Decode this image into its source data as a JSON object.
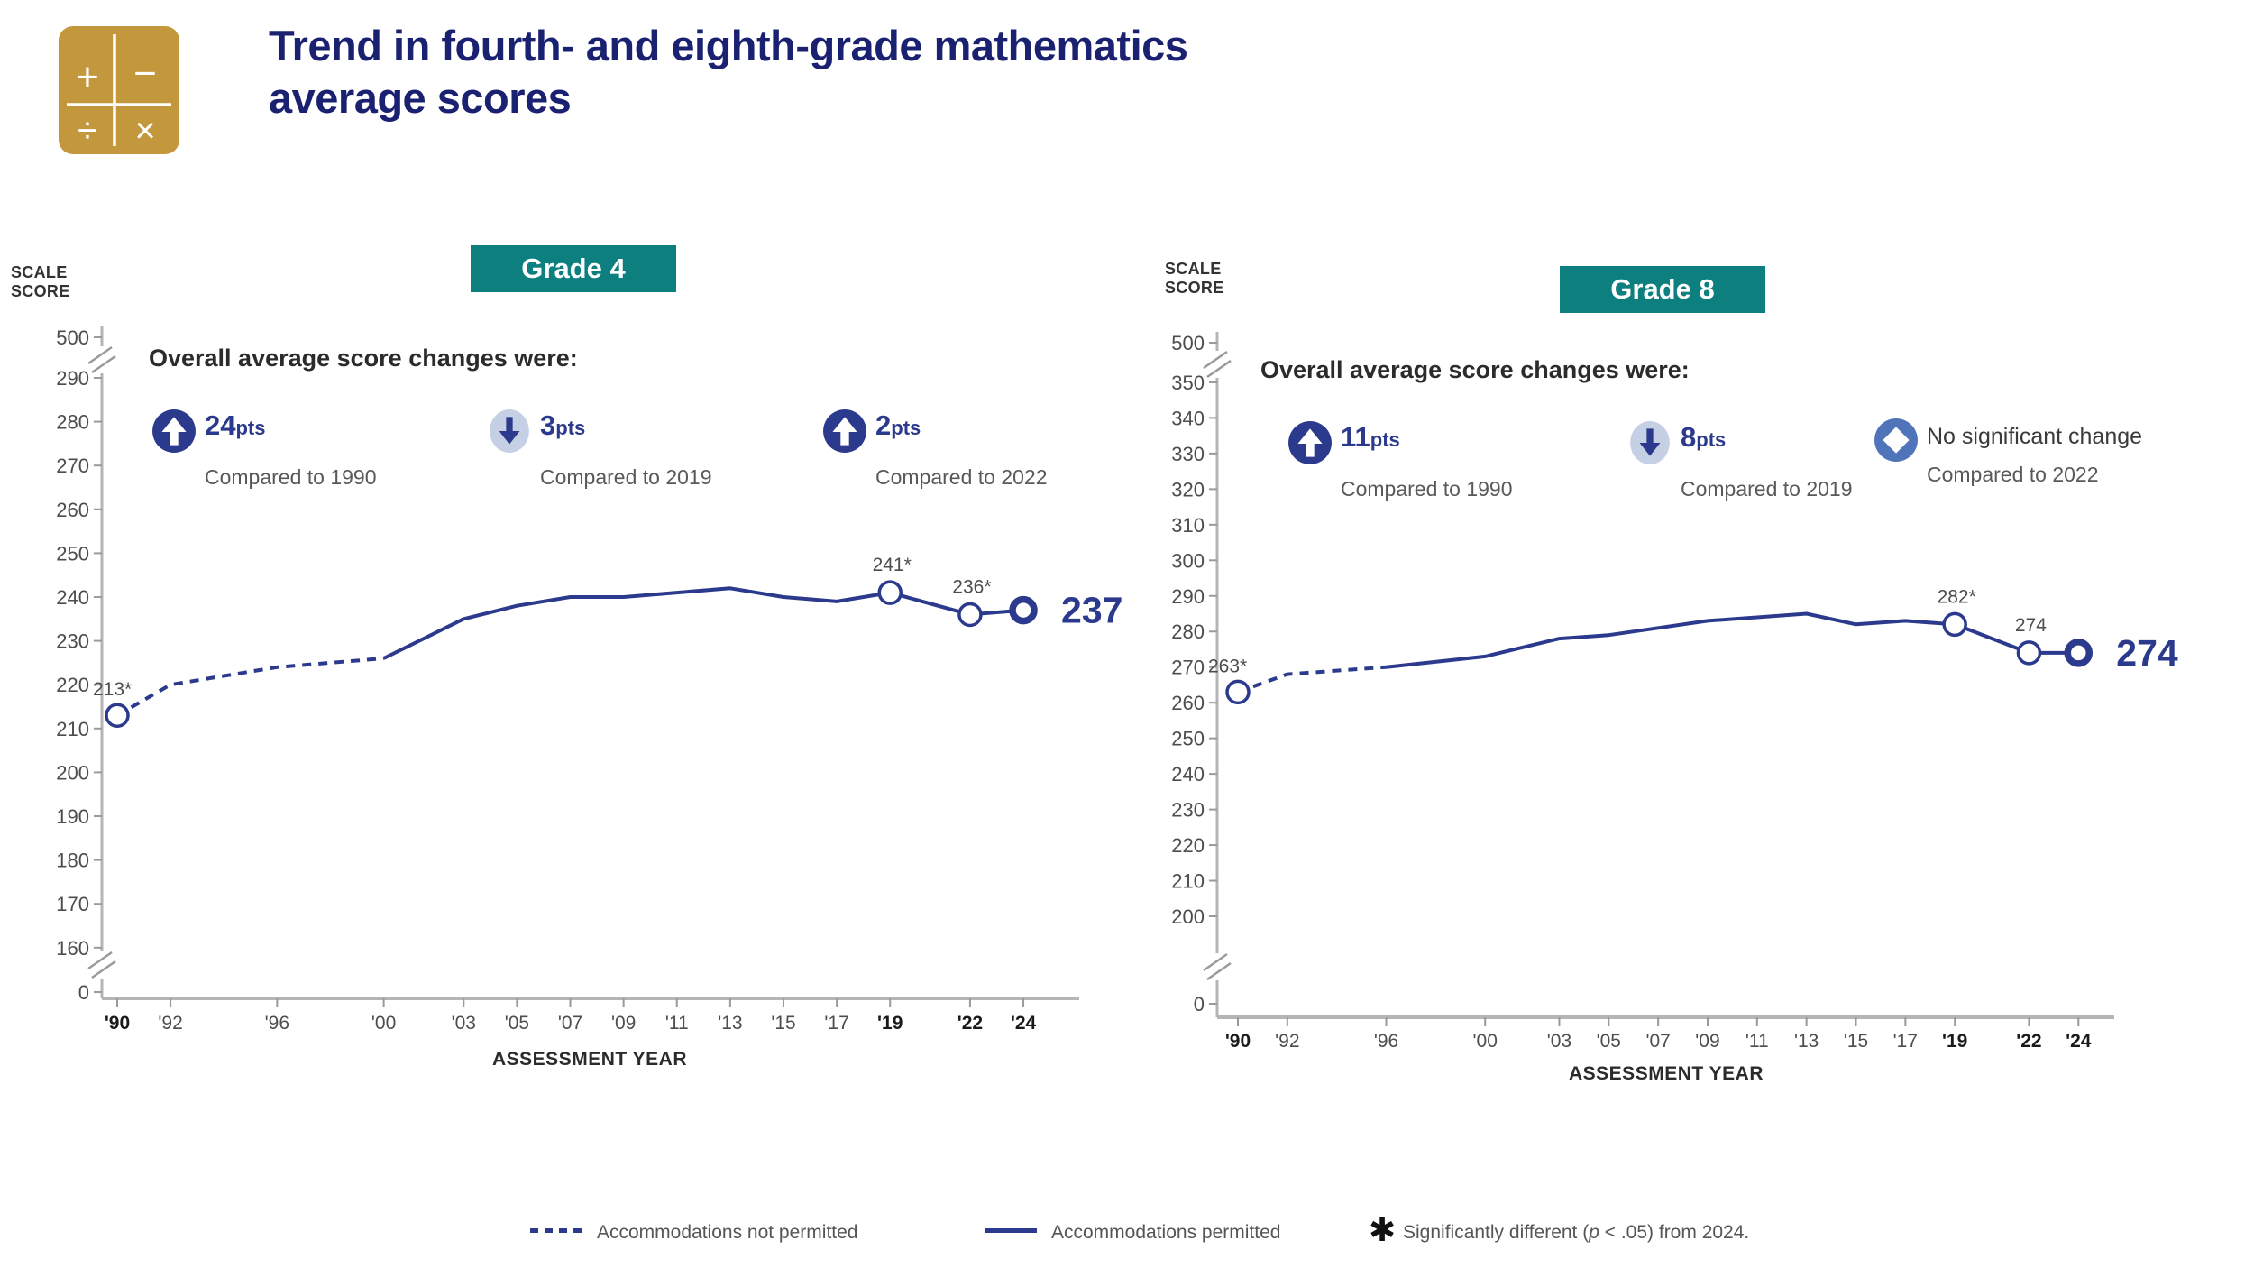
{
  "header": {
    "title_line1": "Trend in fourth- and eighth-grade mathematics",
    "title_line2": "average scores"
  },
  "logo": {
    "symbols": [
      "+",
      "−",
      "÷",
      "×"
    ]
  },
  "charts": [
    {
      "grade_label": "Grade 4",
      "scale_label_line1": "SCALE",
      "scale_label_line2": "SCORE",
      "changes": {
        "title": "Overall average score changes were:",
        "items": [
          {
            "icon": "up-arrow-icon",
            "value": "24",
            "unit": "pts",
            "caption": "Compared to 1990"
          },
          {
            "icon": "down-arrow-icon",
            "value": "3",
            "unit": "pts",
            "caption": "Compared to 2019"
          },
          {
            "icon": "up-arrow-icon",
            "value": "2",
            "unit": "pts",
            "caption": "Compared to 2022"
          }
        ]
      }
    },
    {
      "grade_label": "Grade 8",
      "scale_label_line1": "SCALE",
      "scale_label_line2": "SCORE",
      "changes": {
        "title": "Overall average score changes were:",
        "items": [
          {
            "icon": "up-arrow-icon",
            "value": "11",
            "unit": "pts",
            "caption": "Compared to 1990"
          },
          {
            "icon": "down-arrow-icon",
            "value": "8",
            "unit": "pts",
            "caption": "Compared to 2019"
          },
          {
            "icon": "diamond-icon",
            "text": "No significant change",
            "caption": "Compared to 2022"
          }
        ]
      }
    }
  ],
  "chart_data": [
    {
      "type": "line",
      "title": "Grade 4",
      "xlabel": "ASSESSMENT YEAR",
      "ylabel": "SCALE SCORE",
      "x": [
        1990,
        1992,
        1996,
        2000,
        2003,
        2005,
        2007,
        2009,
        2011,
        2013,
        2015,
        2017,
        2019,
        2022,
        2024
      ],
      "values": [
        213,
        220,
        224,
        226,
        235,
        238,
        240,
        240,
        241,
        242,
        240,
        239,
        241,
        236,
        237
      ],
      "x_tick_labels": [
        "'90",
        "'92",
        "'96",
        "'00",
        "'03",
        "'05",
        "'07",
        "'09",
        "'11",
        "'13",
        "'15",
        "'17",
        "'19",
        "'22",
        "'24"
      ],
      "bold_x_tick_labels": [
        "'90",
        "'19",
        "'22",
        "'24"
      ],
      "y_ticks": [
        290,
        280,
        270,
        260,
        250,
        240,
        230,
        220,
        210,
        200,
        190,
        180,
        170,
        160
      ],
      "y_axis_top_label": "500",
      "y_axis_bottom_label": "0",
      "axis_breaks": true,
      "dashed_until_year": 2000,
      "dashed_meaning": "Accommodations not permitted",
      "solid_meaning": "Accommodations permitted",
      "marker_years": [
        1990,
        2019,
        2022,
        2024
      ],
      "point_labels": [
        {
          "year": 1990,
          "text": "213*",
          "pos": "axis-left"
        },
        {
          "year": 2019,
          "text": "241*",
          "pos": "above"
        },
        {
          "year": 2022,
          "text": "236*",
          "pos": "above"
        },
        {
          "year": 2024,
          "text": "237",
          "pos": "end"
        }
      ]
    },
    {
      "type": "line",
      "title": "Grade 8",
      "xlabel": "ASSESSMENT YEAR",
      "ylabel": "SCALE SCORE",
      "x": [
        1990,
        1992,
        1996,
        2000,
        2003,
        2005,
        2007,
        2009,
        2011,
        2013,
        2015,
        2017,
        2019,
        2022,
        2024
      ],
      "values": [
        263,
        268,
        270,
        273,
        278,
        279,
        281,
        283,
        284,
        285,
        282,
        283,
        282,
        274,
        274
      ],
      "x_tick_labels": [
        "'90",
        "'92",
        "'96",
        "'00",
        "'03",
        "'05",
        "'07",
        "'09",
        "'11",
        "'13",
        "'15",
        "'17",
        "'19",
        "'22",
        "'24"
      ],
      "bold_x_tick_labels": [
        "'90",
        "'19",
        "'22",
        "'24"
      ],
      "y_ticks": [
        350,
        340,
        330,
        320,
        310,
        300,
        290,
        280,
        270,
        260,
        250,
        240,
        230,
        220,
        210,
        200
      ],
      "y_axis_top_label": "500",
      "y_axis_bottom_label": "0",
      "axis_breaks": true,
      "dashed_until_year": 1996,
      "dashed_meaning": "Accommodations not permitted",
      "solid_meaning": "Accommodations permitted",
      "marker_years": [
        1990,
        2019,
        2022,
        2024
      ],
      "point_labels": [
        {
          "year": 1990,
          "text": "263*",
          "pos": "axis-left"
        },
        {
          "year": 2019,
          "text": "282*",
          "pos": "above"
        },
        {
          "year": 2022,
          "text": "274",
          "pos": "above"
        },
        {
          "year": 2024,
          "text": "274",
          "pos": "end"
        }
      ]
    }
  ],
  "legend": {
    "dashed_label": "Accommodations not permitted",
    "solid_label": "Accommodations permitted",
    "asterisk": "✱",
    "sig_prefix": "Significantly different (",
    "sig_p": "p",
    "sig_suffix": " < .05) from 2024."
  },
  "colors": {
    "navy": "#2b3a8c",
    "title_navy": "#1b2171",
    "teal": "#0e7f7f",
    "gold": "#c3973c",
    "light_blue": "#c6d0e4",
    "diamond_blue": "#4f74ba",
    "caption_gray": "#595959",
    "axis_line": "#b5b5b5"
  }
}
